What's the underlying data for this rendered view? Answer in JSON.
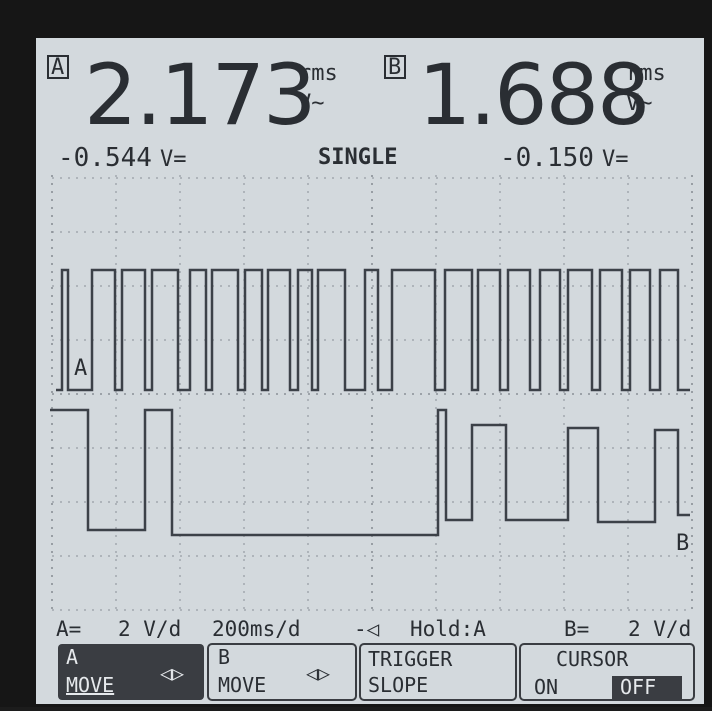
{
  "channel_a": {
    "label": "A",
    "reading": "2.173",
    "rms_unit": "rms",
    "ac_unit": "V~",
    "dc_reading": "-0.544",
    "dc_unit": "V=",
    "trace_label": "A"
  },
  "channel_b": {
    "label": "B",
    "reading": "1.688",
    "rms_unit": "rms",
    "ac_unit": "V~",
    "dc_reading": "-0.150",
    "dc_unit": "V=",
    "trace_label": "B"
  },
  "mode": "SINGLE",
  "status_bar": {
    "a_coupling": "A=",
    "a_scale": "2 V/d",
    "timebase": "200ms/d",
    "trigger": "Hold:A",
    "b_coupling": "B=",
    "b_scale": "2 V/d"
  },
  "softkeys": [
    {
      "line1": "A",
      "line2": "MOVE"
    },
    {
      "line1": "B",
      "line2": "MOVE"
    },
    {
      "line1": "TRIGGER",
      "line2": "SLOPE"
    },
    {
      "line1": "CURSOR",
      "line2": "ON",
      "line3": "OFF"
    }
  ]
}
